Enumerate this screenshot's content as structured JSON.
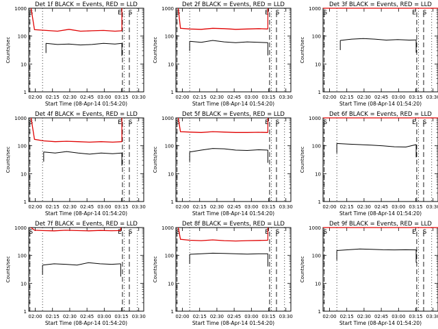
{
  "figure": {
    "background": "#ffffff",
    "events_color": "#000000",
    "lld_color": "#e00000"
  },
  "common": {
    "xlabel": "Start Time (08-Apr-14 01:54:20)",
    "ylabel": "Counts/sec",
    "x_tick_labels": [
      "02:00",
      "02:15",
      "02:30",
      "02:45",
      "03:00",
      "03:15",
      "03:30"
    ],
    "y_tick_labels": [
      "1",
      "10",
      "100",
      "1000"
    ],
    "x_tick_minutes": [
      5.67,
      20.67,
      35.67,
      50.67,
      65.67,
      80.67,
      95.67
    ],
    "xlim_minutes": [
      0,
      100
    ],
    "ylim": [
      1,
      1000
    ],
    "y_scale": "log",
    "line_labels": [
      "S",
      "E"
    ]
  },
  "chart_data": [
    {
      "type": "line",
      "title": "Det 1f BLACK = Events, RED = LLD",
      "series": [
        {
          "name": "Events",
          "color": "#000000",
          "x": [
            15,
            25,
            35,
            45,
            55,
            65,
            75,
            81
          ],
          "values": [
            55,
            50,
            52,
            48,
            50,
            55,
            52,
            55
          ]
        },
        {
          "name": "LLD",
          "color": "#e00000",
          "x": [
            2,
            5,
            15,
            25,
            35,
            45,
            55,
            65,
            75,
            81
          ],
          "values": [
            1000,
            170,
            160,
            150,
            175,
            150,
            155,
            160,
            150,
            155
          ]
        }
      ],
      "vlines": {
        "start": [
          1,
          87.5
        ],
        "end": [
          81.5
        ],
        "dotted": [
          12,
          83,
          94.5
        ]
      }
    },
    {
      "type": "line",
      "title": "Det 2f BLACK = Events, RED = LLD",
      "series": [
        {
          "name": "Events",
          "color": "#000000",
          "x": [
            12,
            22,
            32,
            42,
            52,
            62,
            72,
            80
          ],
          "values": [
            65,
            60,
            70,
            62,
            58,
            62,
            60,
            58
          ]
        },
        {
          "name": "LLD",
          "color": "#e00000",
          "x": [
            2,
            4,
            12,
            22,
            32,
            42,
            52,
            62,
            72,
            80
          ],
          "values": [
            1000,
            190,
            180,
            175,
            190,
            185,
            175,
            180,
            185,
            180
          ]
        }
      ],
      "vlines": {
        "start": [
          1,
          87.5
        ],
        "end": [
          81.5
        ],
        "dotted": [
          12,
          83,
          94.5
        ]
      }
    },
    {
      "type": "line",
      "title": "Det 3f BLACK = Events, RED = LLD",
      "series": [
        {
          "name": "Events",
          "color": "#000000",
          "x": [
            15,
            25,
            35,
            45,
            55,
            65,
            75,
            81
          ],
          "values": [
            70,
            78,
            82,
            78,
            72,
            75,
            72,
            73
          ]
        },
        {
          "name": "LLD",
          "color": "#e00000",
          "x": [
            0,
            100
          ],
          "values": [
            1000,
            1000
          ]
        }
      ],
      "vlines": {
        "start": [
          1,
          87.5
        ],
        "end": [
          81.5
        ],
        "dotted": [
          12,
          83,
          94.5
        ]
      }
    },
    {
      "type": "line",
      "title": "Det 4f BLACK = Events, RED = LLD",
      "series": [
        {
          "name": "Events",
          "color": "#000000",
          "x": [
            13,
            23,
            33,
            43,
            53,
            63,
            73,
            81
          ],
          "values": [
            60,
            55,
            62,
            55,
            50,
            55,
            52,
            55
          ]
        },
        {
          "name": "LLD",
          "color": "#e00000",
          "x": [
            2,
            5,
            13,
            23,
            33,
            43,
            53,
            63,
            73,
            81
          ],
          "values": [
            1000,
            170,
            150,
            140,
            145,
            140,
            135,
            140,
            135,
            140
          ]
        }
      ],
      "vlines": {
        "start": [
          1,
          87.5
        ],
        "end": [
          81.5
        ],
        "dotted": [
          12,
          83,
          94.5
        ]
      }
    },
    {
      "type": "line",
      "title": "Det 5f BLACK = Events, RED = LLD",
      "series": [
        {
          "name": "Events",
          "color": "#000000",
          "x": [
            12,
            22,
            32,
            42,
            52,
            62,
            72,
            80
          ],
          "values": [
            60,
            70,
            80,
            78,
            70,
            68,
            72,
            70
          ]
        },
        {
          "name": "LLD",
          "color": "#e00000",
          "x": [
            2,
            4,
            12,
            22,
            32,
            42,
            52,
            62,
            72,
            80
          ],
          "values": [
            1000,
            320,
            310,
            300,
            320,
            310,
            300,
            300,
            305,
            300
          ]
        }
      ],
      "vlines": {
        "start": [
          1,
          87.5
        ],
        "end": [
          81.5
        ],
        "dotted": [
          12,
          83,
          94.5
        ]
      }
    },
    {
      "type": "line",
      "title": "Det 6f BLACK = Events, RED = LLD",
      "series": [
        {
          "name": "Events",
          "color": "#000000",
          "x": [
            12,
            22,
            32,
            42,
            52,
            62,
            72,
            81
          ],
          "values": [
            120,
            115,
            110,
            105,
            100,
            92,
            90,
            110
          ]
        },
        {
          "name": "LLD",
          "color": "#e00000",
          "x": [
            0,
            100
          ],
          "values": [
            1000,
            1000
          ]
        }
      ],
      "vlines": {
        "start": [
          1,
          87.5
        ],
        "end": [
          81.5
        ],
        "dotted": [
          12,
          83,
          94.5
        ]
      }
    },
    {
      "type": "line",
      "title": "Det 7f BLACK = Events, RED = LLD",
      "series": [
        {
          "name": "Events",
          "color": "#000000",
          "x": [
            12,
            22,
            32,
            42,
            52,
            62,
            72,
            80
          ],
          "values": [
            45,
            50,
            48,
            45,
            55,
            50,
            48,
            50
          ]
        },
        {
          "name": "LLD",
          "color": "#e00000",
          "x": [
            2,
            5,
            12,
            22,
            32,
            42,
            52,
            62,
            72,
            80
          ],
          "values": [
            1000,
            800,
            780,
            760,
            800,
            780,
            760,
            790,
            770,
            780
          ]
        }
      ],
      "vlines": {
        "start": [
          1,
          87.5
        ],
        "end": [
          81.5
        ],
        "dotted": [
          12,
          83,
          94.5
        ]
      }
    },
    {
      "type": "line",
      "title": "Det 8f BLACK = Events, RED = LLD",
      "series": [
        {
          "name": "Events",
          "color": "#000000",
          "x": [
            12,
            22,
            32,
            42,
            52,
            62,
            72,
            80
          ],
          "values": [
            110,
            115,
            120,
            118,
            115,
            112,
            115,
            115
          ]
        },
        {
          "name": "LLD",
          "color": "#e00000",
          "x": [
            2,
            4,
            12,
            22,
            32,
            42,
            52,
            62,
            72,
            80
          ],
          "values": [
            1000,
            380,
            350,
            340,
            360,
            340,
            330,
            340,
            345,
            350
          ]
        }
      ],
      "vlines": {
        "start": [
          1,
          87.5
        ],
        "end": [
          81.5
        ],
        "dotted": [
          12,
          83,
          94.5
        ]
      }
    },
    {
      "type": "line",
      "title": "Det 9f BLACK = Events, RED = LLD",
      "series": [
        {
          "name": "Events",
          "color": "#000000",
          "x": [
            12,
            22,
            32,
            42,
            52,
            62,
            72,
            81
          ],
          "values": [
            150,
            160,
            170,
            165,
            160,
            158,
            160,
            158
          ]
        },
        {
          "name": "LLD",
          "color": "#e00000",
          "x": [
            0,
            100
          ],
          "values": [
            1000,
            1000
          ]
        }
      ],
      "vlines": {
        "start": [
          1,
          87.5
        ],
        "end": [
          81.5
        ],
        "dotted": [
          12,
          83,
          94.5
        ]
      }
    }
  ]
}
